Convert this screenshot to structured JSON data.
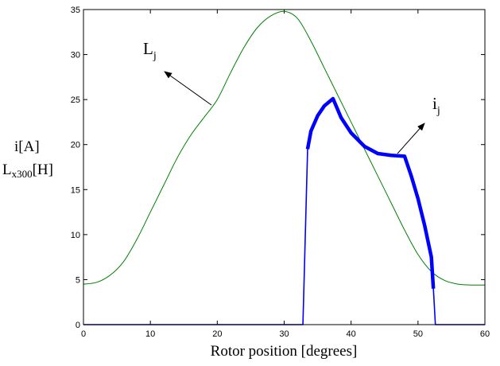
{
  "chart_data": {
    "type": "line",
    "xlabel": "Rotor position [degrees]",
    "ylabel": {
      "line1": "i[A]",
      "line2_main": "L",
      "line2_sub": "x300",
      "line2_unit": "[H]"
    },
    "xlim": [
      0,
      60
    ],
    "ylim": [
      0,
      35
    ],
    "xticks": [
      0,
      10,
      20,
      30,
      40,
      50,
      60
    ],
    "yticks": [
      0,
      5,
      10,
      15,
      20,
      25,
      30,
      35
    ],
    "grid": false,
    "series": [
      {
        "key": "L",
        "color": "#008000",
        "x": [
          0,
          2,
          4,
          6,
          8,
          10,
          12,
          14,
          16,
          18,
          20,
          22,
          24,
          26,
          28,
          30,
          32,
          34,
          36,
          38,
          40,
          42,
          44,
          46,
          48,
          50,
          52,
          54,
          56,
          58,
          60
        ],
        "y": [
          4.5,
          4.7,
          5.5,
          7.0,
          9.5,
          12.5,
          15.5,
          18.5,
          21.0,
          23.0,
          25.0,
          28.0,
          30.8,
          33.0,
          34.3,
          34.8,
          34.0,
          31.5,
          28.5,
          25.5,
          22.5,
          19.5,
          16.5,
          13.5,
          10.5,
          7.8,
          5.9,
          4.9,
          4.5,
          4.4,
          4.4
        ]
      },
      {
        "key": "i",
        "color": "#0000ff",
        "x": [
          0,
          32.8,
          33.5,
          34.0,
          35.0,
          36.0,
          37.3,
          38.5,
          40.0,
          42.0,
          44.0,
          46.0,
          48.0,
          49.0,
          50.0,
          51.0,
          52.0,
          52.3,
          52.6,
          60
        ],
        "y": [
          0,
          0,
          19.5,
          21.5,
          23.2,
          24.3,
          25.1,
          23.0,
          21.3,
          19.8,
          19.0,
          18.8,
          18.7,
          16.5,
          14.0,
          11.0,
          7.5,
          4.0,
          0,
          0
        ]
      }
    ],
    "annotations": [
      {
        "target": "L",
        "main": "L",
        "sub": "j"
      },
      {
        "target": "i",
        "main": "i",
        "sub": "j"
      }
    ]
  }
}
